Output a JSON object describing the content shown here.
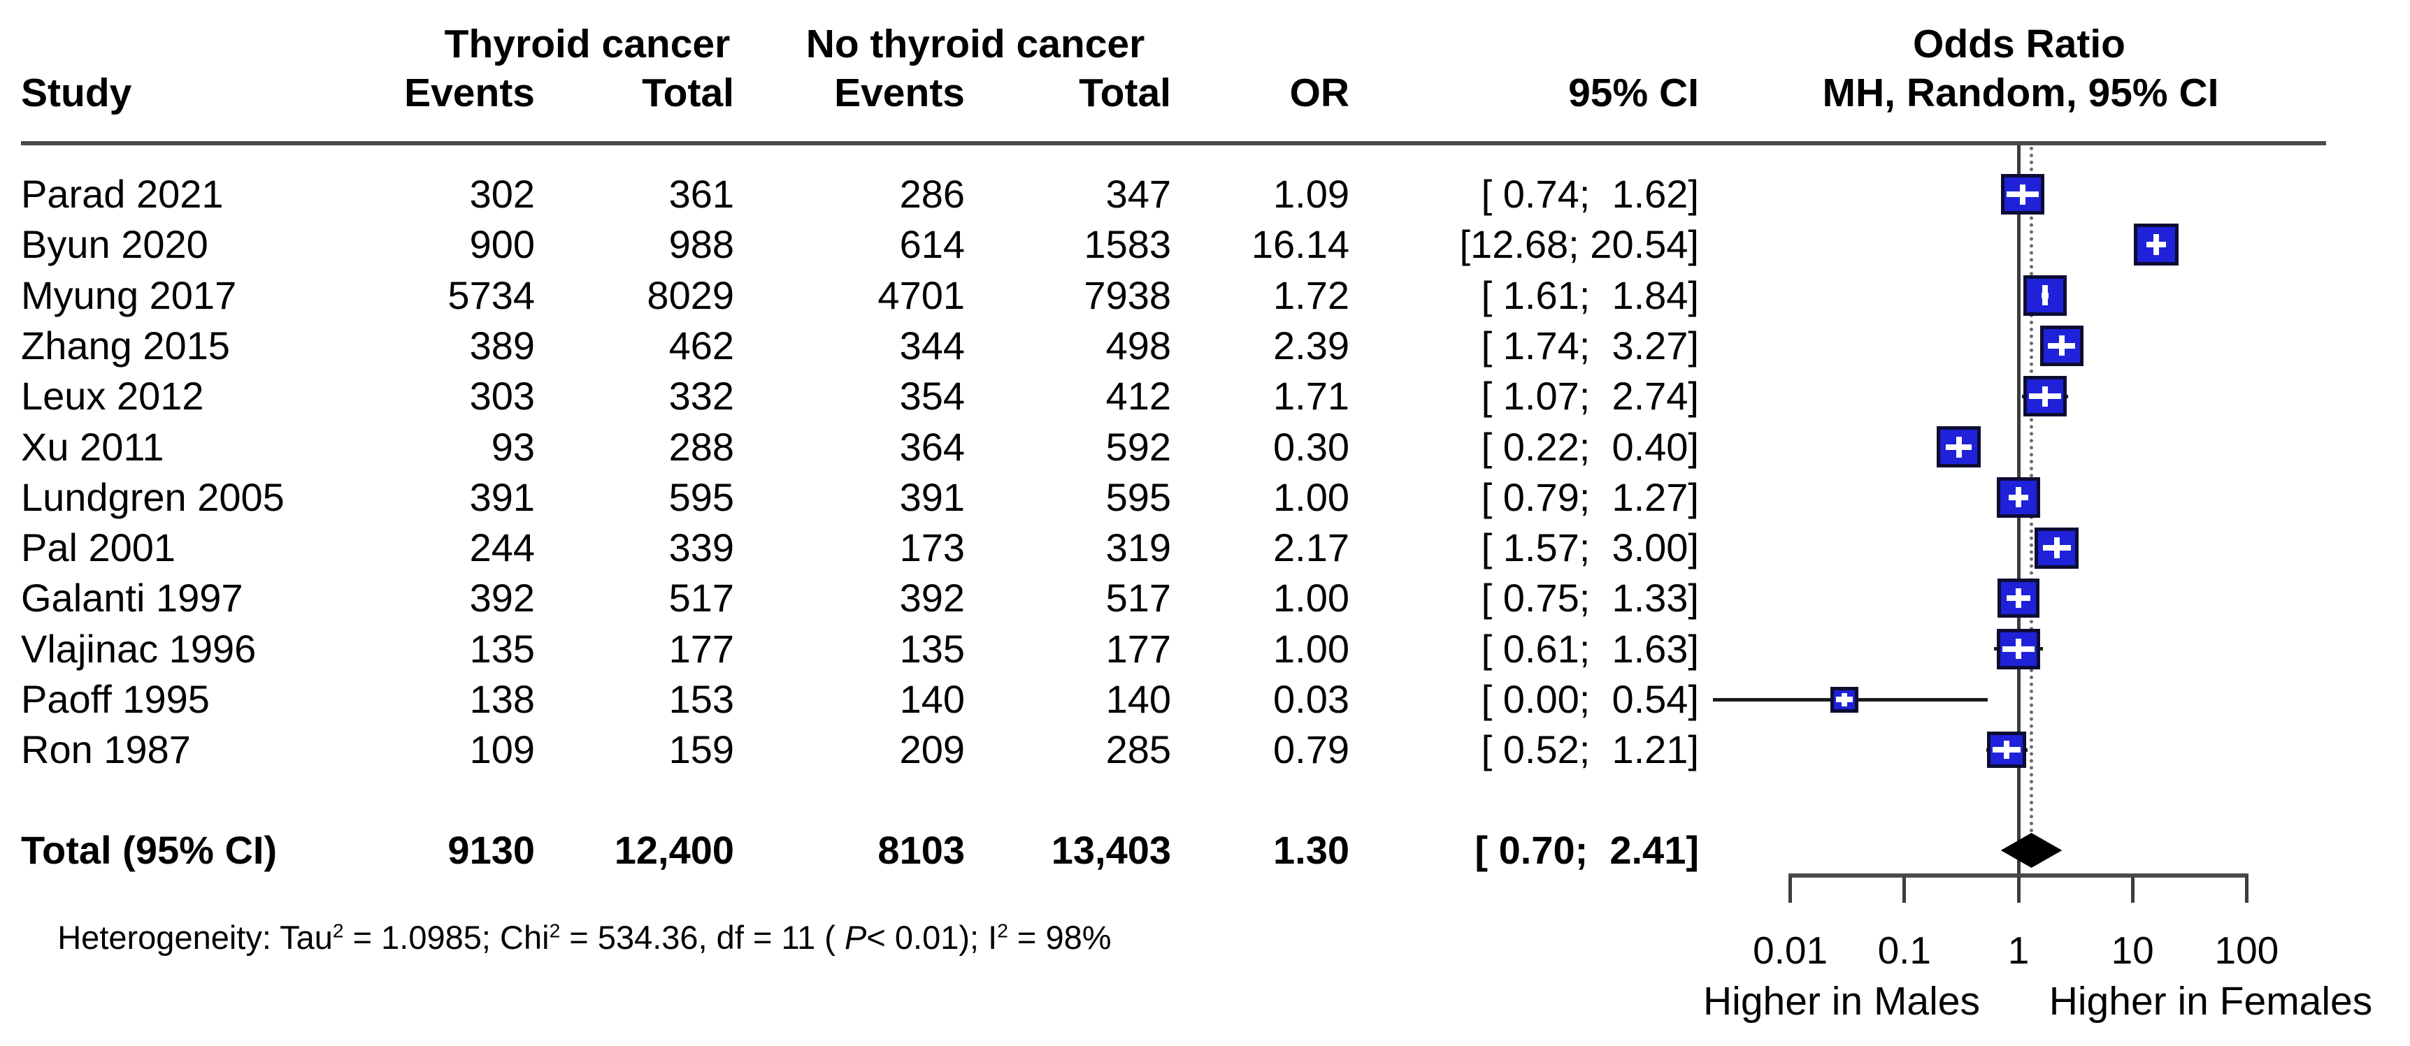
{
  "header": {
    "group1": "Thyroid cancer",
    "group2": "No thyroid cancer",
    "plot_title_line1": "Odds Ratio",
    "plot_title_line2": "MH, Random, 95% CI",
    "study_col": "Study",
    "events_col": "Events",
    "total_col": "Total",
    "or_col": "OR",
    "ci_col": "95% CI"
  },
  "colors": {
    "marker_fill": "#1f22d8",
    "marker_border": "#0d0d33",
    "line_dark": "#3d3d3d",
    "diamond": "#000000"
  },
  "chart_data": {
    "type": "forest",
    "effect_measure": "Odds Ratio (MH, Random, 95% CI)",
    "x_axis": {
      "scale": "log10",
      "ticks": [
        0.01,
        0.1,
        1,
        10,
        100
      ],
      "tick_labels": [
        "0.01",
        "0.1",
        "1",
        "10",
        "100"
      ],
      "reference_line": 1,
      "pooled_dotted_line": 1.3,
      "left_direction_label": "Higher in Males",
      "right_direction_label": "Higher in Females"
    },
    "studies": [
      {
        "study": "Parad 2021",
        "events1": "302",
        "total1": "361",
        "events2": "286",
        "total2": "347",
        "or": 1.09,
        "or_text": "1.09",
        "lo": 0.74,
        "hi": 1.62,
        "ci_text": "[ 0.74;  1.62]",
        "size": 62
      },
      {
        "study": "Byun 2020",
        "events1": "900",
        "total1": "988",
        "events2": "614",
        "total2": "1583",
        "or": 16.14,
        "or_text": "16.14",
        "lo": 12.68,
        "hi": 20.54,
        "ci_text": "[12.68; 20.54]",
        "size": 64
      },
      {
        "study": "Myung 2017",
        "events1": "5734",
        "total1": "8029",
        "events2": "4701",
        "total2": "7938",
        "or": 1.72,
        "or_text": "1.72",
        "lo": 1.61,
        "hi": 1.84,
        "ci_text": "[ 1.61;  1.84]",
        "size": 62
      },
      {
        "study": "Zhang 2015",
        "events1": "389",
        "total1": "462",
        "events2": "344",
        "total2": "498",
        "or": 2.39,
        "or_text": "2.39",
        "lo": 1.74,
        "hi": 3.27,
        "ci_text": "[ 1.74;  3.27]",
        "size": 62
      },
      {
        "study": "Leux 2012",
        "events1": "303",
        "total1": "332",
        "events2": "354",
        "total2": "412",
        "or": 1.71,
        "or_text": "1.71",
        "lo": 1.07,
        "hi": 2.74,
        "ci_text": "[ 1.07;  2.74]",
        "size": 62
      },
      {
        "study": "Xu 2011",
        "events1": "93",
        "total1": "288",
        "events2": "364",
        "total2": "592",
        "or": 0.3,
        "or_text": "0.30",
        "lo": 0.22,
        "hi": 0.4,
        "ci_text": "[ 0.22;  0.40]",
        "size": 63
      },
      {
        "study": "Lundgren 2005",
        "events1": "391",
        "total1": "595",
        "events2": "391",
        "total2": "595",
        "or": 1.0,
        "or_text": "1.00",
        "lo": 0.79,
        "hi": 1.27,
        "ci_text": "[ 0.79;  1.27]",
        "size": 62
      },
      {
        "study": "Pal 2001",
        "events1": "244",
        "total1": "339",
        "events2": "173",
        "total2": "319",
        "or": 2.17,
        "or_text": "2.17",
        "lo": 1.57,
        "hi": 3.0,
        "ci_text": "[ 1.57;  3.00]",
        "size": 63
      },
      {
        "study": "Galanti 1997",
        "events1": "392",
        "total1": "517",
        "events2": "392",
        "total2": "517",
        "or": 1.0,
        "or_text": "1.00",
        "lo": 0.75,
        "hi": 1.33,
        "ci_text": "[ 0.75;  1.33]",
        "size": 60
      },
      {
        "study": "Vlajinac 1996",
        "events1": "135",
        "total1": "177",
        "events2": "135",
        "total2": "177",
        "or": 1.0,
        "or_text": "1.00",
        "lo": 0.61,
        "hi": 1.63,
        "ci_text": "[ 0.61;  1.63]",
        "size": 62
      },
      {
        "study": "Paoff 1995",
        "events1": "138",
        "total1": "153",
        "events2": "140",
        "total2": "140",
        "or": 0.03,
        "or_text": "0.03",
        "lo": 0.0,
        "hi": 0.54,
        "ci_text": "[ 0.00;  0.54]",
        "size": 40,
        "lo_draw": 0.0021
      },
      {
        "study": "Ron 1987",
        "events1": "109",
        "total1": "159",
        "events2": "209",
        "total2": "285",
        "or": 0.79,
        "or_text": "0.79",
        "lo": 0.52,
        "hi": 1.21,
        "ci_text": "[ 0.52;  1.21]",
        "size": 56
      }
    ],
    "total": {
      "label": "Total (95% CI)",
      "events1": "9130",
      "total1": "12,400",
      "events2": "8103",
      "total2": "13,403",
      "or": 1.3,
      "or_text": "1.30",
      "lo": 0.7,
      "hi": 2.41,
      "ci_text": "[ 0.70;  2.41]"
    },
    "heterogeneity": {
      "prefix": "Heterogeneity: Tau",
      "sup1": "2",
      "mid1": " = 1.0985; Chi",
      "sup2": "2",
      "mid2": " = 534.36, df = 11 ( ",
      "p_label": "P",
      "tail1": "< 0.01); I",
      "sup3": "2",
      "tail2": " = 98%"
    }
  }
}
